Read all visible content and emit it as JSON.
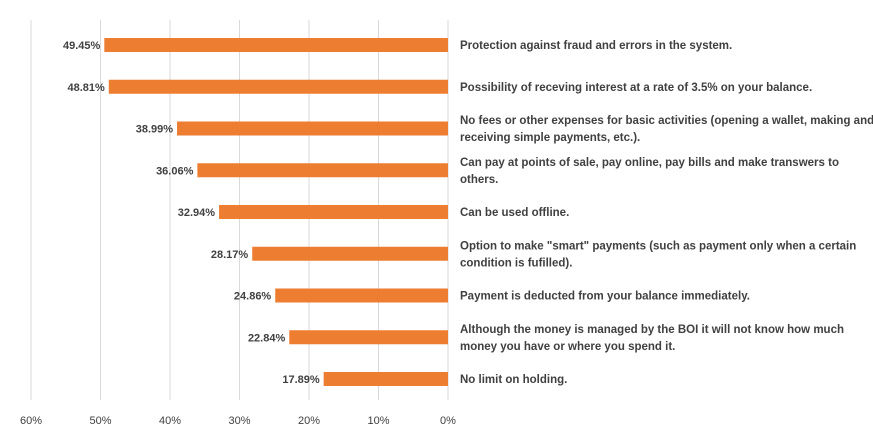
{
  "chart_data": {
    "type": "bar",
    "orientation": "horizontal",
    "x_axis_reversed": true,
    "xlim": [
      0,
      60
    ],
    "x_ticks": [
      60,
      50,
      40,
      30,
      20,
      10,
      0
    ],
    "x_tick_labels": [
      "60%",
      "50%",
      "40%",
      "30%",
      "20%",
      "10%",
      "0%"
    ],
    "grid": "vertical",
    "bar_color": "#ed7d31",
    "title": "",
    "xlabel": "",
    "ylabel": "",
    "categories": [
      [
        "Protection against fraud and errors in the system."
      ],
      [
        "Possibility of receving interest at a rate of 3.5% on your balance."
      ],
      [
        "No fees or other expenses for basic activities (opening a wallet, making and",
        "receiving simple payments, etc.)."
      ],
      [
        "Can pay at points of sale, pay online, pay bills and make transwers to",
        "others."
      ],
      [
        "Can be used offline."
      ],
      [
        "Option to make \"smart\" payments (such as payment only when a certain",
        "condition is fufilled)."
      ],
      [
        "Payment is deducted from your balance immediately."
      ],
      [
        "Although the money is managed by the BOI it will not know how much",
        "money you have or where you spend it."
      ],
      [
        "No limit on holding."
      ]
    ],
    "values": [
      49.45,
      48.81,
      38.99,
      36.06,
      32.94,
      28.17,
      24.86,
      22.84,
      17.89
    ],
    "value_labels": [
      "49.45%",
      "48.81%",
      "38.99%",
      "36.06%",
      "32.94%",
      "28.17%",
      "24.86%",
      "22.84%",
      "17.89%"
    ]
  }
}
